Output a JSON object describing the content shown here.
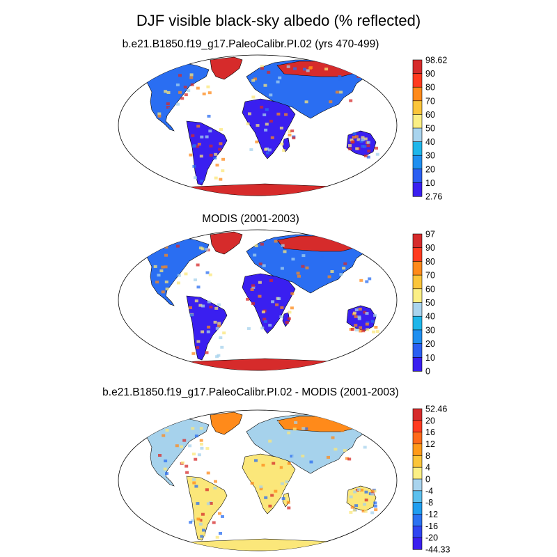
{
  "figure": {
    "title": "DJF visible black-sky albedo (% reflected)"
  },
  "colors": {
    "land_dark_blue": "#3a1ff0",
    "land_blue": "#2a6ef2",
    "land_red": "#d62b2b",
    "land_orange": "#ff8a1a",
    "land_yellow": "#fbe77a",
    "land_light_blue": "#a6d2ec",
    "coast": "#000000",
    "ocean": "#ffffff"
  },
  "chart_data": [
    {
      "type": "heatmap",
      "title": "b.e21.B1850.f19_g17.PaleoCalibr.PI.02 (yrs 470-499)",
      "colorbar": {
        "ticks": [
          "98.62",
          "90",
          "80",
          "70",
          "60",
          "50",
          "40",
          "30",
          "20",
          "10",
          "2.76"
        ],
        "colors": [
          "#d62b2b",
          "#ff3b1f",
          "#ff8a1a",
          "#fbc53a",
          "#fbef85",
          "#a9d4ee",
          "#1eb6ea",
          "#1f8ff0",
          "#2b5ff2",
          "#3a1ff0"
        ]
      }
    },
    {
      "type": "heatmap",
      "title": "MODIS (2001-2003)",
      "colorbar": {
        "ticks": [
          "97",
          "90",
          "80",
          "70",
          "60",
          "50",
          "40",
          "30",
          "20",
          "10",
          "0"
        ],
        "colors": [
          "#d62b2b",
          "#ff3b1f",
          "#ff8a1a",
          "#fbc53a",
          "#fbef85",
          "#a9d4ee",
          "#1eb6ea",
          "#1f8ff0",
          "#2b5ff2",
          "#3a1ff0"
        ]
      }
    },
    {
      "type": "heatmap",
      "title": "b.e21.B1850.f19_g17.PaleoCalibr.PI.02 - MODIS (2001-2003)",
      "colorbar": {
        "ticks": [
          "52.46",
          "20",
          "16",
          "12",
          "8",
          "4",
          "0",
          "-4",
          "-8",
          "-12",
          "-16",
          "-20",
          "-44.33"
        ],
        "colors": [
          "#d62b2b",
          "#ff3b1f",
          "#ff6a1a",
          "#ff9a1a",
          "#fbc53a",
          "#fbef85",
          "#a9d4ee",
          "#5cc0ee",
          "#1f9ef0",
          "#2b72f2",
          "#2f45f2",
          "#3a1ff0"
        ]
      }
    }
  ]
}
